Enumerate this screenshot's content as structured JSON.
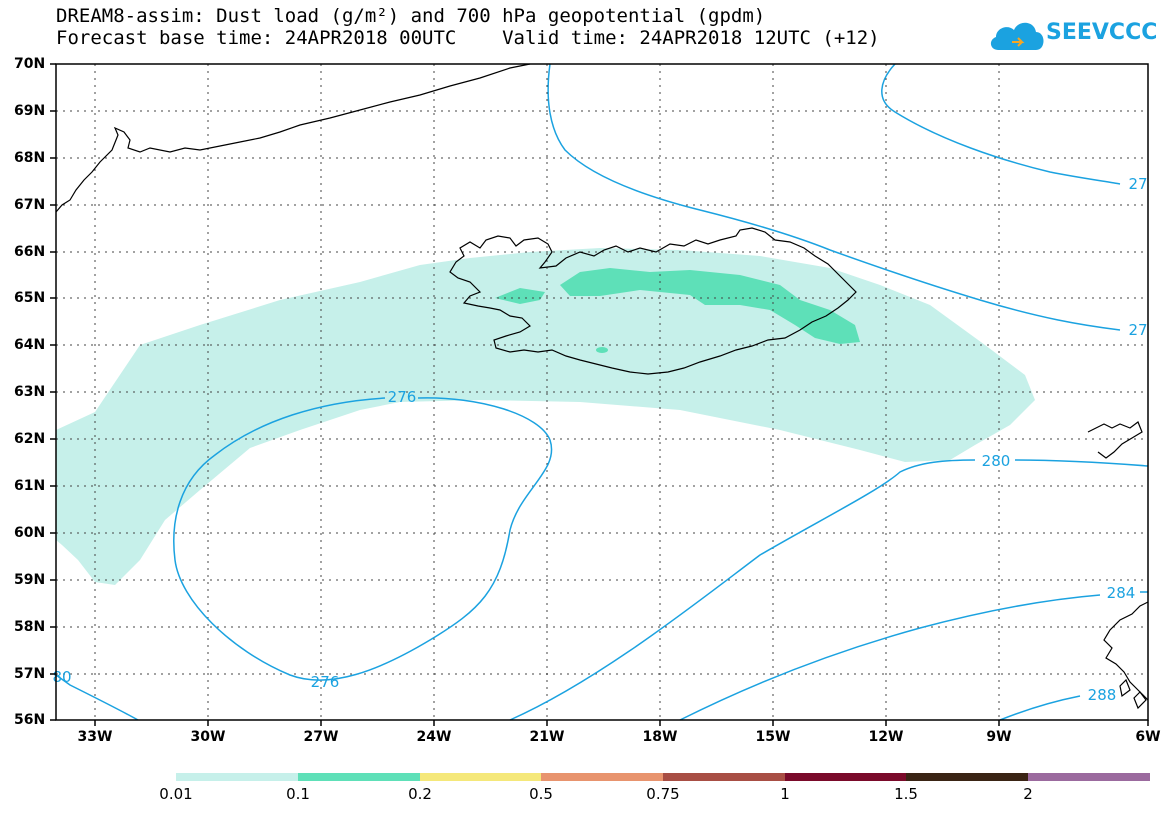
{
  "header": {
    "line1": "DREAM8-assim: Dust load (g/m²) and 700 hPa geopotential (gpdm)",
    "line2": "Forecast base time: 24APR2018 00UTC    Valid time: 24APR2018 12UTC (+12)"
  },
  "logo": {
    "text": "SEEVCCC",
    "icon": "cloud-logo-icon",
    "color": "#1ba2e0"
  },
  "map": {
    "lat_labels": [
      "70N",
      "69N",
      "68N",
      "67N",
      "66N",
      "65N",
      "64N",
      "63N",
      "62N",
      "61N",
      "60N",
      "59N",
      "58N",
      "57N",
      "56N"
    ],
    "lon_labels": [
      "33W",
      "30W",
      "27W",
      "24W",
      "21W",
      "18W",
      "15W",
      "12W",
      "9W",
      "6W"
    ],
    "contour_labels": [
      "276",
      "276",
      "280",
      "284",
      "288",
      "80",
      "27",
      "27"
    ],
    "colors": {
      "contour": "#1ba2e0",
      "dust_low": "#c6f0ea",
      "dust_mid": "#5ee0b8",
      "coast": "#000000"
    }
  },
  "colorbar": {
    "labels": [
      "0.01",
      "0.1",
      "0.2",
      "0.5",
      "0.75",
      "1",
      "1.5",
      "2"
    ],
    "colors": [
      "#c6f0ea",
      "#5ee0b8",
      "#f5e87a",
      "#e8946e",
      "#a84e44",
      "#7a0a2a",
      "#3a2414",
      "#9b6a9e"
    ]
  }
}
